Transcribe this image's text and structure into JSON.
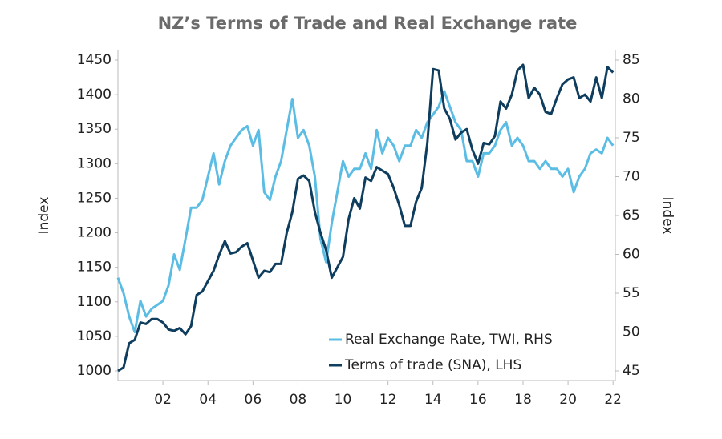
{
  "chart_data": {
    "type": "line",
    "title": "NZ’s Terms of Trade and Real Exchange rate",
    "ylabel": "Index",
    "y2label": "Index",
    "x": [
      2000.0,
      2000.25,
      2000.5,
      2000.75,
      2001.0,
      2001.25,
      2001.5,
      2001.75,
      2002.0,
      2002.25,
      2002.5,
      2002.75,
      2003.0,
      2003.25,
      2003.5,
      2003.75,
      2004.0,
      2004.25,
      2004.5,
      2004.75,
      2005.0,
      2005.25,
      2005.5,
      2005.75,
      2006.0,
      2006.25,
      2006.5,
      2006.75,
      2007.0,
      2007.25,
      2007.5,
      2007.75,
      2008.0,
      2008.25,
      2008.5,
      2008.75,
      2009.0,
      2009.25,
      2009.5,
      2009.75,
      2010.0,
      2010.25,
      2010.5,
      2010.75,
      2011.0,
      2011.25,
      2011.5,
      2011.75,
      2012.0,
      2012.25,
      2012.5,
      2012.75,
      2013.0,
      2013.25,
      2013.5,
      2013.75,
      2014.0,
      2014.25,
      2014.5,
      2014.75,
      2015.0,
      2015.25,
      2015.5,
      2015.75,
      2016.0,
      2016.25,
      2016.5,
      2016.75,
      2017.0,
      2017.25,
      2017.5,
      2017.75,
      2018.0,
      2018.25,
      2018.5,
      2018.75,
      2019.0,
      2019.25,
      2019.5,
      2019.75,
      2020.0,
      2020.25,
      2020.5,
      2020.75,
      2021.0,
      2021.25,
      2021.5,
      2021.75,
      2022.0
    ],
    "series": [
      {
        "name": "Real Exchange Rate, TWI, RHS",
        "color": "#5bbde4",
        "axis": "y2",
        "values": [
          57,
          55,
          52,
          50,
          54,
          52,
          53,
          53.5,
          54,
          56,
          60,
          58,
          62,
          66,
          66,
          67,
          70,
          73,
          69,
          72,
          74,
          75,
          76,
          76.5,
          74,
          76,
          68,
          67,
          70,
          72,
          76,
          80,
          75,
          76,
          74,
          70,
          62,
          59,
          64,
          68,
          72,
          70,
          71,
          71,
          73,
          71,
          76,
          73,
          75,
          74,
          72,
          74,
          74,
          76,
          75,
          77,
          78,
          79,
          81,
          79,
          77,
          76,
          72,
          72,
          70,
          73,
          73,
          74,
          76,
          77,
          74,
          75,
          74,
          72,
          72,
          71,
          72,
          71,
          71,
          70,
          71,
          68,
          70,
          71,
          73,
          73.5,
          73,
          75,
          74
        ]
      },
      {
        "name": "Terms of trade (SNA), LHS",
        "color": "#0e3d5e",
        "values": [
          1000,
          1005,
          1040,
          1045,
          1070,
          1068,
          1075,
          1075,
          1070,
          1060,
          1058,
          1062,
          1053,
          1065,
          1110,
          1115,
          1130,
          1145,
          1168,
          1188,
          1170,
          1172,
          1180,
          1185,
          1160,
          1135,
          1145,
          1143,
          1155,
          1155,
          1200,
          1230,
          1278,
          1283,
          1275,
          1230,
          1200,
          1175,
          1135,
          1150,
          1165,
          1220,
          1250,
          1235,
          1280,
          1275,
          1295,
          1290,
          1285,
          1265,
          1240,
          1210,
          1210,
          1245,
          1265,
          1330,
          1437,
          1435,
          1380,
          1365,
          1335,
          1345,
          1350,
          1320,
          1300,
          1330,
          1328,
          1340,
          1390,
          1380,
          1400,
          1435,
          1443,
          1395,
          1410,
          1400,
          1375,
          1372,
          1395,
          1415,
          1422,
          1425,
          1395,
          1400,
          1390,
          1425,
          1395,
          1440,
          1432
        ]
      }
    ],
    "xlim": [
      2000,
      2022.1
    ],
    "xticks": [
      {
        "value": 2002,
        "label": "02"
      },
      {
        "value": 2004,
        "label": "04"
      },
      {
        "value": 2006,
        "label": "06"
      },
      {
        "value": 2008,
        "label": "08"
      },
      {
        "value": 2010,
        "label": "10"
      },
      {
        "value": 2012,
        "label": "12"
      },
      {
        "value": 2014,
        "label": "14"
      },
      {
        "value": 2016,
        "label": "16"
      },
      {
        "value": 2018,
        "label": "18"
      },
      {
        "value": 2020,
        "label": "20"
      },
      {
        "value": 2022,
        "label": "22"
      }
    ],
    "ylim": [
      1000,
      1450
    ],
    "yticks": [
      1000,
      1050,
      1100,
      1150,
      1200,
      1250,
      1300,
      1350,
      1400,
      1450
    ],
    "y2lim": [
      45,
      85
    ],
    "y2ticks": [
      45,
      50,
      55,
      60,
      65,
      70,
      75,
      80,
      85
    ],
    "legend": "lower right",
    "grid": false
  }
}
